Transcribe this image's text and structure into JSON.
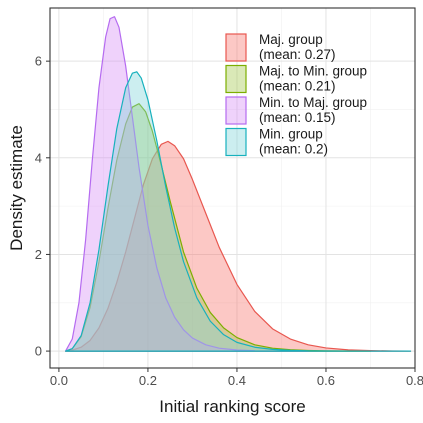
{
  "chart_data": {
    "type": "area",
    "xlabel": "Initial ranking score",
    "ylabel": "Density estimate",
    "xlim": [
      -0.02,
      0.8
    ],
    "ylim": [
      -0.35,
      7.1
    ],
    "xticks": [
      0.0,
      0.2,
      0.4,
      0.6,
      0.8
    ],
    "xtick_labels": [
      "0.0",
      "0.2",
      "0.4",
      "0.6",
      "0.8"
    ],
    "yticks": [
      0,
      2,
      4,
      6
    ],
    "ytick_labels": [
      "0",
      "2",
      "4",
      "6"
    ],
    "grid": true,
    "legend_position": "top-right (inside)",
    "series": [
      {
        "name": "Maj. group",
        "legend": [
          "Maj. group",
          "(mean: 0.27)"
        ],
        "fill": "#f8766d",
        "stroke": "#e8574f",
        "x": [
          0.015,
          0.03,
          0.05,
          0.07,
          0.09,
          0.11,
          0.13,
          0.15,
          0.17,
          0.19,
          0.21,
          0.23,
          0.245,
          0.26,
          0.28,
          0.3,
          0.33,
          0.36,
          0.4,
          0.44,
          0.48,
          0.52,
          0.56,
          0.6,
          0.65,
          0.7,
          0.75,
          0.79
        ],
        "y": [
          0.0,
          0.02,
          0.08,
          0.22,
          0.48,
          0.88,
          1.42,
          2.05,
          2.75,
          3.45,
          3.98,
          4.28,
          4.34,
          4.25,
          3.98,
          3.55,
          2.85,
          2.15,
          1.38,
          0.82,
          0.46,
          0.25,
          0.13,
          0.065,
          0.025,
          0.009,
          0.003,
          0.0
        ]
      },
      {
        "name": "Maj. to Min. group",
        "legend": [
          "Maj. to Min. group",
          "(mean: 0.21)"
        ],
        "fill": "#a3c94c",
        "stroke": "#7cae00",
        "x": [
          0.015,
          0.03,
          0.05,
          0.07,
          0.09,
          0.11,
          0.13,
          0.15,
          0.165,
          0.18,
          0.195,
          0.21,
          0.23,
          0.25,
          0.28,
          0.31,
          0.34,
          0.37,
          0.4,
          0.44,
          0.48,
          0.52,
          0.56,
          0.6,
          0.65,
          0.7
        ],
        "y": [
          0.0,
          0.05,
          0.3,
          0.9,
          1.85,
          2.95,
          3.95,
          4.7,
          5.05,
          5.12,
          4.95,
          4.55,
          3.85,
          3.1,
          2.05,
          1.3,
          0.8,
          0.48,
          0.28,
          0.13,
          0.06,
          0.027,
          0.012,
          0.005,
          0.002,
          0.0
        ]
      },
      {
        "name": "Min. to Maj. group",
        "legend": [
          "Min. to Maj. group",
          "(mean: 0.15)"
        ],
        "fill": "#d78ef5",
        "stroke": "#b56bf0",
        "x": [
          0.015,
          0.03,
          0.045,
          0.06,
          0.075,
          0.09,
          0.105,
          0.115,
          0.125,
          0.135,
          0.15,
          0.165,
          0.18,
          0.2,
          0.22,
          0.24,
          0.26,
          0.28,
          0.3,
          0.33,
          0.36,
          0.4,
          0.44,
          0.48,
          0.52,
          0.56
        ],
        "y": [
          0.0,
          0.25,
          1.0,
          2.3,
          3.95,
          5.45,
          6.5,
          6.88,
          6.92,
          6.7,
          5.9,
          4.85,
          3.8,
          2.6,
          1.72,
          1.1,
          0.7,
          0.44,
          0.27,
          0.13,
          0.06,
          0.022,
          0.008,
          0.003,
          0.001,
          0.0
        ]
      },
      {
        "name": "Min. group",
        "legend": [
          "Min. group",
          "(mean: 0.2)"
        ],
        "fill": "#7fd4d9",
        "stroke": "#17b1bd",
        "x": [
          0.015,
          0.03,
          0.05,
          0.07,
          0.09,
          0.11,
          0.13,
          0.15,
          0.165,
          0.175,
          0.185,
          0.2,
          0.22,
          0.24,
          0.26,
          0.28,
          0.31,
          0.34,
          0.37,
          0.4,
          0.44,
          0.48,
          0.52,
          0.56,
          0.6,
          0.65,
          0.7,
          0.75,
          0.79
        ],
        "y": [
          0.0,
          0.05,
          0.32,
          1.0,
          2.1,
          3.4,
          4.6,
          5.45,
          5.75,
          5.78,
          5.65,
          5.2,
          4.35,
          3.4,
          2.55,
          1.85,
          1.1,
          0.62,
          0.34,
          0.18,
          0.08,
          0.035,
          0.015,
          0.006,
          0.003,
          0.001,
          0.0,
          0.0,
          0.0
        ]
      }
    ]
  }
}
